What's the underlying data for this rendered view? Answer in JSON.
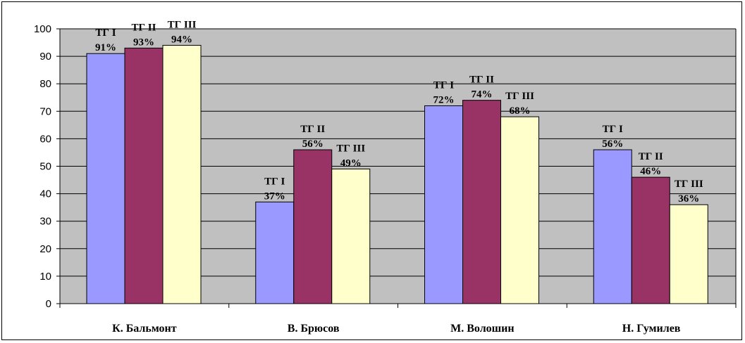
{
  "chart_data": {
    "type": "bar",
    "title": "",
    "xlabel": "",
    "ylabel": "",
    "ylim": [
      0,
      100
    ],
    "yticks": [
      0,
      10,
      20,
      30,
      40,
      50,
      60,
      70,
      80,
      90,
      100
    ],
    "grid": true,
    "legend": "none",
    "plot_background": "#c0c0c0",
    "categories": [
      "К. Бальмонт",
      "В. Брюсов",
      "М. Волошин",
      "Н. Гумилев"
    ],
    "series": [
      {
        "color": "#9999ff",
        "values": [
          91,
          37,
          72,
          56
        ],
        "labels": [
          [
            "ТГ I",
            "91%"
          ],
          [
            "ТГ I",
            "37%"
          ],
          [
            "ТГ I",
            "72%"
          ],
          [
            "ТГ I",
            "56%"
          ]
        ]
      },
      {
        "color": "#993366",
        "values": [
          93,
          56,
          74,
          46
        ],
        "labels": [
          [
            "ТГ II",
            "93%"
          ],
          [
            "ТГ II",
            "56%"
          ],
          [
            "ТГ II",
            "74%"
          ],
          [
            "ТГ II",
            "46%"
          ]
        ]
      },
      {
        "color": "#ffffcc",
        "values": [
          94,
          49,
          68,
          36
        ],
        "labels": [
          [
            "ТГ III",
            "94%"
          ],
          [
            "ТГ III",
            "49%"
          ],
          [
            "ТГ III",
            "68%"
          ],
          [
            "ТГ III",
            "36%"
          ]
        ]
      }
    ]
  }
}
